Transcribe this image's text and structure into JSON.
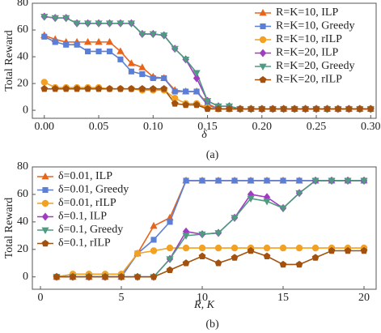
{
  "chart_data": [
    {
      "type": "line",
      "caption": "(a)",
      "x_label": "δ",
      "y_label": "Total Reward",
      "x": [
        0.0,
        0.01,
        0.02,
        0.03,
        0.04,
        0.05,
        0.06,
        0.07,
        0.08,
        0.09,
        0.1,
        0.11,
        0.12,
        0.13,
        0.14,
        0.15,
        0.16,
        0.17,
        0.18,
        0.19,
        0.2,
        0.21,
        0.22,
        0.23,
        0.24,
        0.25,
        0.26,
        0.27,
        0.28,
        0.29,
        0.3
      ],
      "xlim": [
        -0.011,
        0.305
      ],
      "ylim": [
        -6,
        80
      ],
      "xticks": [
        {
          "value": 0,
          "label": "0.00"
        },
        0.05,
        {
          "value": 0.1,
          "label": "0.10"
        },
        0.15,
        {
          "value": 0.2,
          "label": "0.20"
        },
        0.25,
        {
          "value": 0.3,
          "label": "0.30"
        }
      ],
      "yticks": [
        0,
        20,
        40,
        60,
        80
      ],
      "legend": "upper right",
      "grid": false,
      "series": [
        {
          "name": "R=K=10, ILP",
          "color": "#e8641b",
          "marker": "triangle",
          "values": [
            56,
            53,
            51,
            51,
            51,
            51,
            51,
            44,
            35,
            32,
            25,
            24,
            15,
            14,
            14,
            5,
            1,
            1,
            1,
            1,
            1,
            1,
            1,
            1,
            1,
            1,
            1,
            1,
            1,
            1,
            1
          ]
        },
        {
          "name": "R=K=10, Greedy",
          "color": "#5b7fd6",
          "marker": "square",
          "values": [
            55,
            51,
            49,
            49,
            44,
            44,
            44,
            38,
            29,
            27,
            24,
            24,
            14,
            14,
            14,
            4,
            1,
            1,
            1,
            1,
            1,
            1,
            1,
            1,
            1,
            1,
            1,
            1,
            1,
            1,
            1
          ]
        },
        {
          "name": "R=K=10, rILP",
          "color": "#f2a122",
          "marker": "circle",
          "values": [
            21,
            17,
            17,
            17,
            17,
            17,
            16,
            16,
            16,
            15,
            15,
            15,
            9,
            5,
            5,
            2,
            1,
            1,
            1,
            1,
            1,
            1,
            1,
            1,
            1,
            1,
            1,
            1,
            1,
            1,
            1
          ]
        },
        {
          "name": "R=K=20, ILP",
          "color": "#a03cc0",
          "marker": "diamond",
          "values": [
            70,
            69,
            69,
            65,
            65,
            65,
            65,
            65,
            65,
            57,
            57,
            56,
            46,
            38,
            24,
            7,
            3,
            3,
            1,
            1,
            1,
            1,
            1,
            1,
            1,
            1,
            1,
            1,
            1,
            1,
            1
          ]
        },
        {
          "name": "R=K=20, Greedy",
          "color": "#4f9a80",
          "marker": "triangle-down",
          "values": [
            70,
            69,
            69,
            65,
            65,
            65,
            65,
            65,
            65,
            57,
            57,
            56,
            46,
            38,
            28,
            7,
            3,
            3,
            1,
            1,
            1,
            1,
            1,
            1,
            1,
            1,
            1,
            1,
            1,
            1,
            1
          ]
        },
        {
          "name": "R=K=20, rILP",
          "color": "#a2520e",
          "marker": "pentagon",
          "values": [
            16,
            16,
            16,
            16,
            16,
            16,
            16,
            16,
            16,
            16,
            16,
            16,
            5,
            4,
            4,
            1,
            1,
            1,
            1,
            1,
            1,
            1,
            1,
            1,
            1,
            1,
            1,
            1,
            1,
            1,
            1
          ]
        }
      ]
    },
    {
      "type": "line",
      "caption": "(b)",
      "x_label": "R, K",
      "y_label": "Total Reward",
      "x": [
        1,
        2,
        3,
        4,
        5,
        6,
        7,
        8,
        9,
        10,
        11,
        12,
        13,
        14,
        15,
        16,
        17,
        18,
        19,
        20
      ],
      "xlim": [
        -0.5,
        20.75
      ],
      "ylim": [
        -9,
        80
      ],
      "xticks": [
        0,
        5,
        10,
        15,
        20
      ],
      "yticks": [
        0,
        20,
        40,
        60,
        80
      ],
      "legend": "upper left",
      "grid": false,
      "series": [
        {
          "name": "δ=0.01, ILP",
          "color": "#e8641b",
          "marker": "triangle",
          "values": [
            0,
            0,
            0,
            0,
            0,
            17,
            37,
            43,
            70,
            70,
            70,
            70,
            70,
            70,
            70,
            70,
            70,
            70,
            70,
            70
          ]
        },
        {
          "name": "δ=0.01, Greedy",
          "color": "#5b7fd6",
          "marker": "square",
          "values": [
            0,
            0,
            0,
            0,
            0,
            17,
            27,
            40,
            70,
            70,
            70,
            70,
            70,
            70,
            70,
            70,
            70,
            70,
            70,
            70
          ]
        },
        {
          "name": "δ=0.01, rILP",
          "color": "#f2a122",
          "marker": "circle",
          "values": [
            0,
            2,
            2,
            2,
            2,
            17,
            19,
            21,
            21,
            21,
            21,
            21,
            21,
            21,
            21,
            21,
            21,
            21,
            21,
            21
          ]
        },
        {
          "name": "δ=0.1, ILP",
          "color": "#a03cc0",
          "marker": "diamond",
          "values": [
            0,
            0,
            0,
            0,
            0,
            0,
            0,
            13,
            33,
            31,
            32,
            43,
            60,
            58,
            50,
            61,
            70,
            70,
            70,
            70
          ]
        },
        {
          "name": "δ=0.1, Greedy",
          "color": "#4f9a80",
          "marker": "triangle-down",
          "values": [
            0,
            0,
            0,
            0,
            0,
            0,
            0,
            13,
            30,
            31,
            32,
            43,
            57,
            55,
            50,
            61,
            70,
            70,
            70,
            70
          ]
        },
        {
          "name": "δ=0.1, rILP",
          "color": "#a2520e",
          "marker": "pentagon",
          "values": [
            0,
            0,
            0,
            0,
            0,
            0,
            0,
            5,
            10,
            15,
            10,
            14,
            19,
            15,
            9,
            9,
            14,
            19,
            19,
            19
          ]
        }
      ]
    }
  ]
}
